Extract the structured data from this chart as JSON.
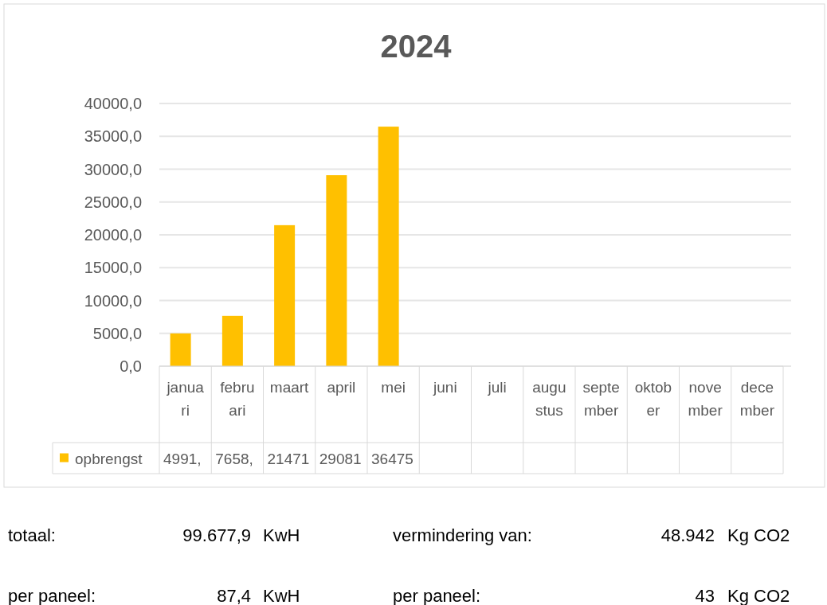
{
  "chart_data": {
    "type": "bar",
    "title": "2024",
    "categories": [
      "januari",
      "februari",
      "maart",
      "april",
      "mei",
      "juni",
      "juli",
      "augustus",
      "september",
      "oktober",
      "november",
      "december"
    ],
    "series": [
      {
        "name": "opbrengst",
        "color": "#ffc000",
        "values": [
          4991,
          7658,
          21471,
          29081,
          36475,
          null,
          null,
          null,
          null,
          null,
          null,
          null
        ],
        "value_labels": [
          "4991,",
          "7658,",
          "21471",
          "29081",
          "36475",
          null,
          null,
          null,
          null,
          null,
          null,
          null
        ]
      }
    ],
    "ylim": [
      0,
      40000
    ],
    "yticks": [
      {
        "value": 0,
        "label": "0,0"
      },
      {
        "value": 5000,
        "label": "5000,0"
      },
      {
        "value": 10000,
        "label": "10000,0"
      },
      {
        "value": 15000,
        "label": "15000,0"
      },
      {
        "value": 20000,
        "label": "20000,0"
      },
      {
        "value": 25000,
        "label": "25000,0"
      },
      {
        "value": 30000,
        "label": "30000,0"
      },
      {
        "value": 35000,
        "label": "35000,0"
      },
      {
        "value": 40000,
        "label": "40000,0"
      }
    ],
    "grid": "y",
    "legend": "bottom",
    "annotations": [
      "totaal:",
      "99.677,9",
      "KwH",
      "vermindering van:",
      "48.942",
      "Kg CO2",
      "per paneel:",
      "87,4",
      "KwH",
      "per paneel:",
      "43",
      "Kg CO2"
    ]
  }
}
